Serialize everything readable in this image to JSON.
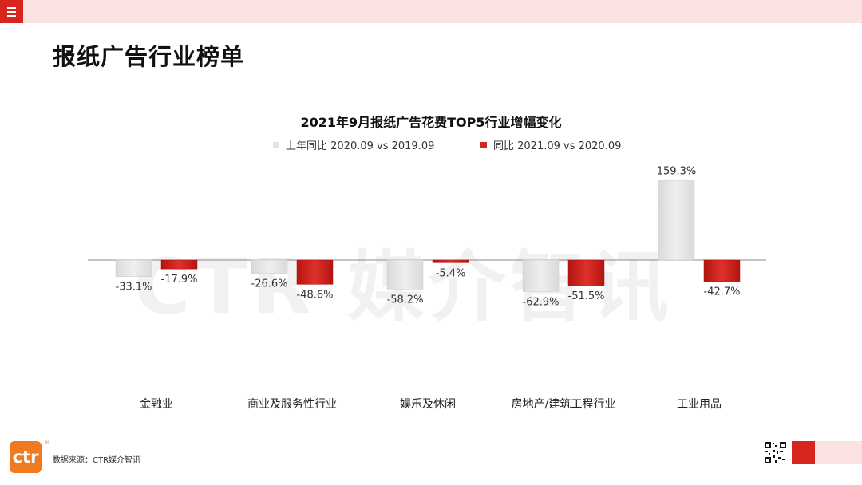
{
  "header": {
    "page_title": "报纸广告行业榜单"
  },
  "watermark": "CTR 媒介智讯",
  "footer": {
    "logo_text": "ctr",
    "registered_mark": "®",
    "source": "数据来源：CTR媒介智讯"
  },
  "colors": {
    "accent": "#d7261e",
    "top_bar": "#fbe3e3",
    "logo": "#f07a1f",
    "series_prev": "#e3e3e3",
    "series_curr": "#d7261e"
  },
  "icons": [
    "menu-icon",
    "ctr-logo",
    "qr-code"
  ],
  "chart_data": {
    "type": "bar",
    "title": "2021年9月报纸广告花费TOP5行业增幅变化",
    "categories": [
      "金融业",
      "商业及服务性行业",
      "娱乐及休闲",
      "房地产/建筑工程行业",
      "工业用品"
    ],
    "series": [
      {
        "name": "上年同比 2020.09 vs 2019.09",
        "values": [
          -33.1,
          -26.6,
          -58.2,
          -62.9,
          159.3
        ],
        "labels": [
          "-33.1%",
          "-26.6%",
          "-58.2%",
          "-62.9%",
          "159.3%"
        ],
        "color": "#e3e3e3"
      },
      {
        "name": "同比 2021.09 vs 2020.09",
        "values": [
          -17.9,
          -48.6,
          -5.4,
          -51.5,
          -42.7
        ],
        "labels": [
          "-17.9%",
          "-48.6%",
          "-5.4%",
          "-51.5%",
          "-42.7%"
        ],
        "color": "#d7261e"
      }
    ],
    "xlabel": "",
    "ylabel": "",
    "ylim": [
      -70,
      165
    ],
    "grid": false,
    "legend_position": "top-center"
  }
}
